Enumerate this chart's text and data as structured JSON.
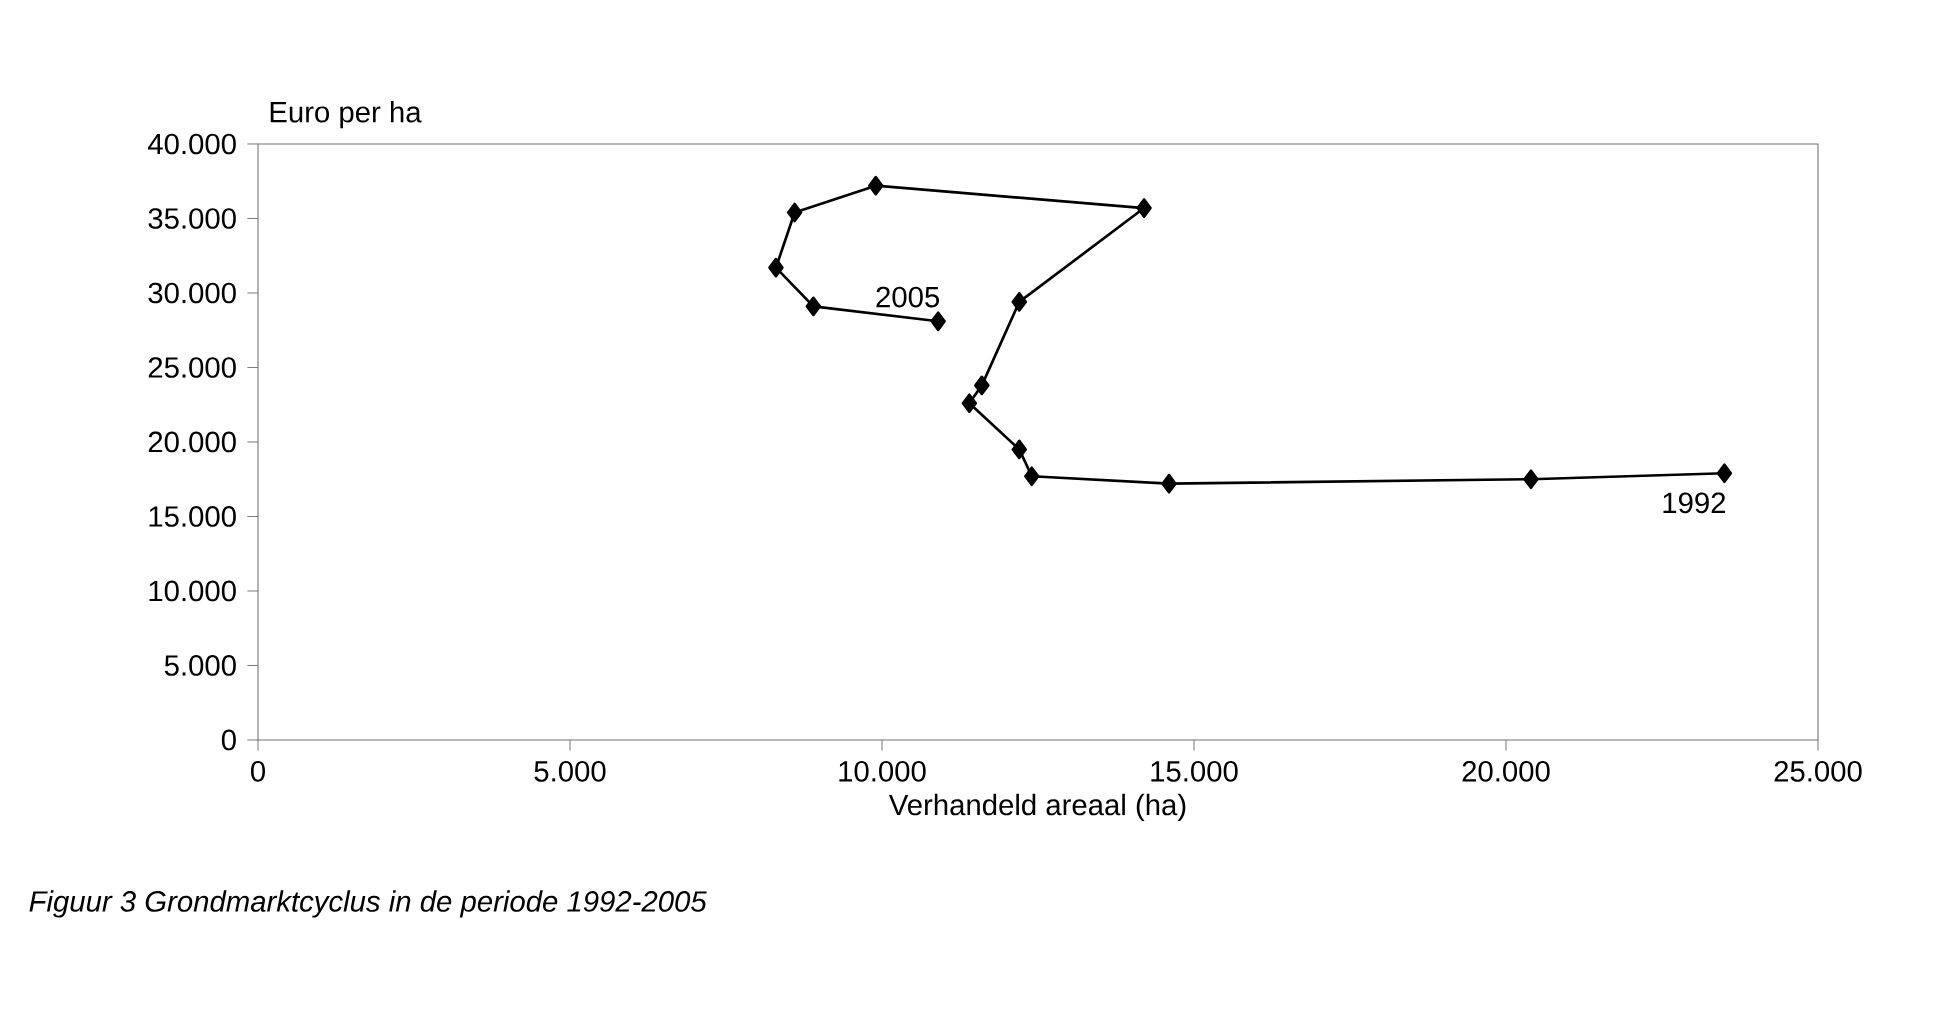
{
  "chart_data": {
    "type": "line",
    "xlabel": "Verhandeld areaal (ha)",
    "ylabel": "Euro per ha",
    "x": [
      23500,
      20400,
      14600,
      12400,
      12200,
      11400,
      11600,
      12200,
      14200,
      9900,
      8600,
      8300,
      8900,
      10900
    ],
    "values": [
      17900,
      17500,
      17200,
      17700,
      19500,
      22600,
      23800,
      29400,
      35700,
      37200,
      35400,
      31700,
      29100,
      28100
    ],
    "color": "#000000",
    "marker": "diamond",
    "line_style": "solid",
    "xlim": [
      0,
      25000
    ],
    "ylim": [
      0,
      40000
    ],
    "xticks": [
      0,
      {
        "value": 5000,
        "label": "5.000"
      },
      {
        "value": 10000,
        "label": "10.000"
      },
      {
        "value": 15000,
        "label": "15.000"
      },
      {
        "value": 20000,
        "label": "20.000"
      },
      {
        "value": 25000,
        "label": "25.000"
      }
    ],
    "yticks": [
      0,
      {
        "value": 5000,
        "label": "5.000"
      },
      {
        "value": 10000,
        "label": "10.000"
      },
      {
        "value": 15000,
        "label": "15.000"
      },
      {
        "value": 20000,
        "label": "20.000"
      },
      {
        "value": 25000,
        "label": "25.000"
      },
      {
        "value": 30000,
        "label": "30.000"
      },
      {
        "value": 35000,
        "label": "35.000"
      },
      {
        "value": 40000,
        "label": "40.000"
      }
    ],
    "annotations": [
      {
        "text": "1992",
        "x": 23500,
        "y": 17900
      },
      {
        "text": "2005",
        "x": 10900,
        "y": 28100
      },
      "Figuur 3    Grondmarktcyclus in de periode 1992-2005"
    ]
  }
}
